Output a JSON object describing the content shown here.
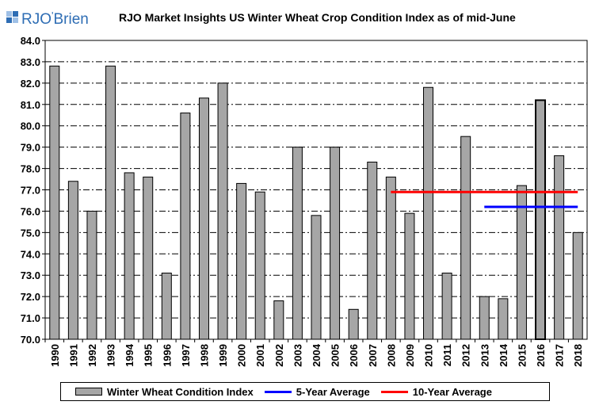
{
  "logo": {
    "text_left": "RJO",
    "text_right": "Brien",
    "apostrophe": "'"
  },
  "colors": {
    "bar_fill": "#a6a6a6",
    "bar_stroke": "#000000",
    "avg5": "#0000ff",
    "avg10": "#ff0000",
    "logo_blue": "#2e6db4"
  },
  "chart_data": {
    "type": "bar",
    "title": "RJO Market Insights US Winter Wheat Crop Condition Index as of mid-June",
    "xlabel": "",
    "ylabel": "",
    "ylim": [
      70.0,
      84.0
    ],
    "ytick_step": 1.0,
    "grid": true,
    "legend_position": "bottom",
    "categories": [
      "1990",
      "1991",
      "1992",
      "1993",
      "1994",
      "1995",
      "1996",
      "1997",
      "1998",
      "1999",
      "2000",
      "2001",
      "2002",
      "2003",
      "2004",
      "2005",
      "2006",
      "2007",
      "2008",
      "2009",
      "2010",
      "2011",
      "2012",
      "2013",
      "2014",
      "2015",
      "2016",
      "2017",
      "2018"
    ],
    "series": [
      {
        "name": "Winter Wheat Condition Index",
        "type": "bar",
        "values": [
          82.8,
          77.4,
          76.0,
          82.8,
          77.8,
          77.6,
          73.1,
          80.6,
          81.3,
          82.0,
          77.3,
          76.9,
          71.8,
          79.0,
          75.8,
          79.0,
          71.4,
          78.3,
          77.6,
          75.9,
          81.8,
          73.1,
          79.5,
          72.0,
          71.9,
          77.2,
          81.2,
          78.6,
          75.0
        ]
      }
    ],
    "highlight_category": "2016",
    "averages": [
      {
        "name": "5-Year Average",
        "type": "line",
        "value": 76.2,
        "x_start": "2013",
        "x_end": "2018"
      },
      {
        "name": "10-Year Average",
        "type": "line",
        "value": 76.9,
        "x_start": "2008",
        "x_end": "2018"
      }
    ]
  }
}
